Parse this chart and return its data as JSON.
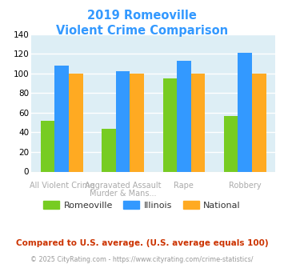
{
  "title_line1": "2019 Romeoville",
  "title_line2": "Violent Crime Comparison",
  "cat_labels_top": [
    "",
    "Aggravated Assault",
    "Rape",
    ""
  ],
  "cat_labels_bot": [
    "All Violent Crime",
    "Murder & Mans...",
    "",
    "Robbery"
  ],
  "series": {
    "Romeoville": [
      52,
      44,
      95,
      57
    ],
    "Illinois": [
      108,
      102,
      113,
      121
    ],
    "National": [
      100,
      100,
      100,
      100
    ]
  },
  "colors": {
    "Romeoville": "#77cc22",
    "Illinois": "#3399ff",
    "National": "#ffaa22"
  },
  "ylim": [
    0,
    140
  ],
  "yticks": [
    0,
    20,
    40,
    60,
    80,
    100,
    120,
    140
  ],
  "title_color": "#3399ff",
  "plot_bg": "#ddeef5",
  "label_color": "#aaaaaa",
  "legend_label_color": "#333333",
  "footnote1": "Compared to U.S. average. (U.S. average equals 100)",
  "footnote2": "© 2025 CityRating.com - https://www.cityrating.com/crime-statistics/",
  "footnote1_color": "#cc3300",
  "footnote2_color": "#999999"
}
